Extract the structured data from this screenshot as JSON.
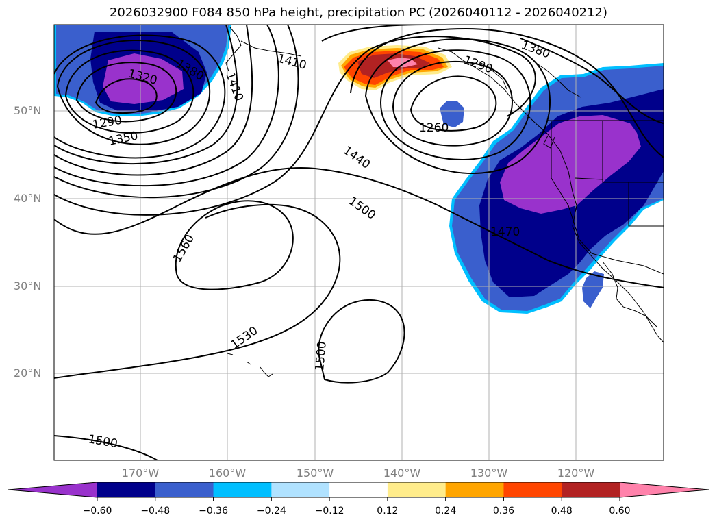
{
  "title": "2026032900 F084 850 hPa height, precipitation PC (2026040112 - 2026040212)",
  "map": {
    "lat_labels": [
      "50°N",
      "40°N",
      "30°N",
      "20°N"
    ],
    "lon_labels": [
      "170°W",
      "160°W",
      "150°W",
      "140°W",
      "130°W",
      "120°W"
    ],
    "contour_labels": [
      "1320",
      "1380",
      "1410",
      "1290",
      "1350",
      "1410",
      "1380",
      "1290",
      "1260",
      "1440",
      "1500",
      "1560",
      "1470",
      "1530",
      "1500",
      "1500"
    ]
  },
  "colorbar": {
    "ticks": [
      "−0.60",
      "−0.48",
      "−0.36",
      "−0.24",
      "−0.12",
      "0.12",
      "0.24",
      "0.36",
      "0.48",
      "0.60"
    ],
    "colors": [
      "#9932cc",
      "#00008b",
      "#3a5fcd",
      "#00bfff",
      "#b0e2ff",
      "#ffffff",
      "#ffec8b",
      "#ffa500",
      "#ff4500",
      "#b22222",
      "#ff82ab"
    ]
  }
}
